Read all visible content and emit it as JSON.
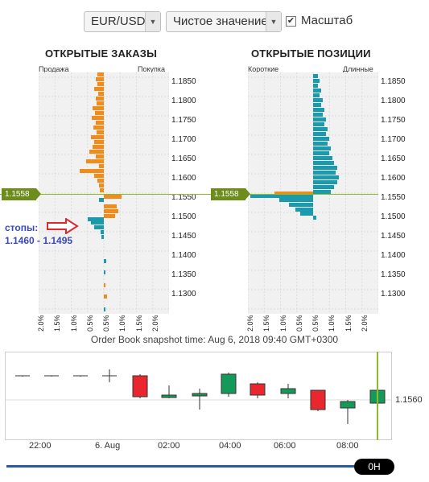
{
  "toolbar": {
    "pair_value": "EUR/USD",
    "mode_value": "Чистое значение",
    "scale_label": "Масштаб",
    "scale_checked": true
  },
  "orders": {
    "title": "ОТКРЫТЫЕ ЗАКАЗЫ",
    "left_label": "Продажа",
    "right_label": "Покупка",
    "price_tag": "1.1558",
    "annotation_label": "стопы:",
    "annotation_range": "1.1460 - 1.1495"
  },
  "positions": {
    "title": "ОТКРЫТЫЕ ПОЗИЦИИ",
    "left_label": "Короткие",
    "right_label": "Длинные",
    "price_tag": "1.1558"
  },
  "price_ticks": [
    "1.1850",
    "1.1800",
    "1.1750",
    "1.1700",
    "1.1650",
    "1.1600",
    "1.1550",
    "1.1500",
    "1.1450",
    "1.1400",
    "1.1350",
    "1.1300"
  ],
  "pct_ticks": [
    "2.0%",
    "1.5%",
    "1.0%",
    "0.5%",
    "0.5%",
    "1.0%",
    "1.5%",
    "2.0%"
  ],
  "snapshot": "Order Book snapshot time: Aug 6, 2018 09:40 GMT+0300",
  "candles": {
    "price_label": "1.1560",
    "time_labels": [
      "22:00",
      "6. Aug",
      "02:00",
      "04:00",
      "06:00",
      "08:00"
    ],
    "timeframe": "0H"
  },
  "colors": {
    "orange": "#f08c1a",
    "teal": "#1a9aaa",
    "bull": "#149a58",
    "bear": "#e8282e",
    "price_line": "#8cbc2c"
  }
}
